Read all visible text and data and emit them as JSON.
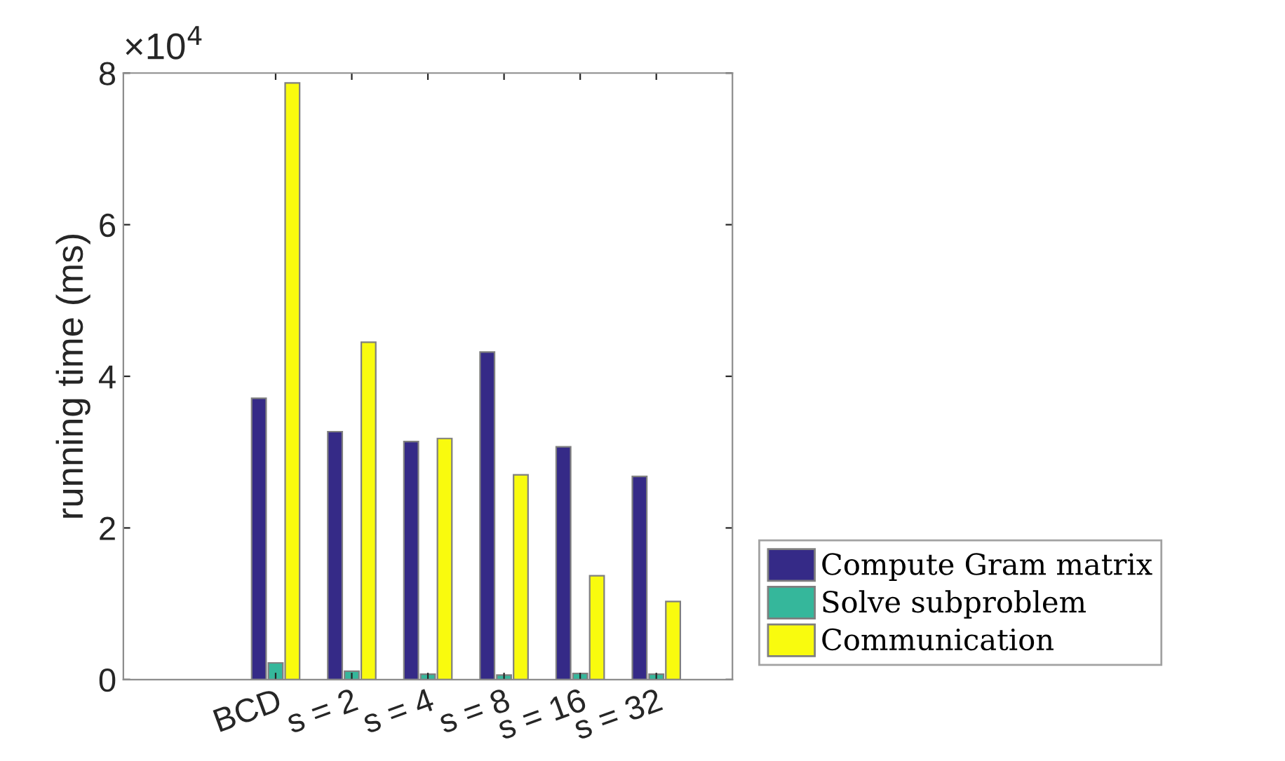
{
  "chart_data": {
    "type": "bar",
    "ylabel": "running time (ms)",
    "categories": [
      null,
      "BCD",
      "s = 2",
      "s = 4",
      "s = 8",
      "s = 16",
      "s = 32"
    ],
    "series": [
      {
        "name": "Compute Gram matrix",
        "color": "#352a87",
        "values": [
          null,
          3.71,
          3.27,
          3.14,
          4.32,
          3.07,
          2.68
        ]
      },
      {
        "name": "Solve subproblem",
        "color": "#35b79b",
        "values": [
          null,
          0.22,
          0.11,
          0.07,
          0.06,
          0.08,
          0.07
        ]
      },
      {
        "name": "Communication",
        "color": "#f9fb0e",
        "values": [
          null,
          7.87,
          4.45,
          3.18,
          2.7,
          1.37,
          1.03
        ]
      }
    ],
    "ylim": [
      0,
      8
    ],
    "yticks": [
      0,
      2,
      4,
      6,
      8
    ],
    "annotations": [
      "×10$^{4}$"
    ],
    "legend": "bottom right",
    "grid": false
  }
}
